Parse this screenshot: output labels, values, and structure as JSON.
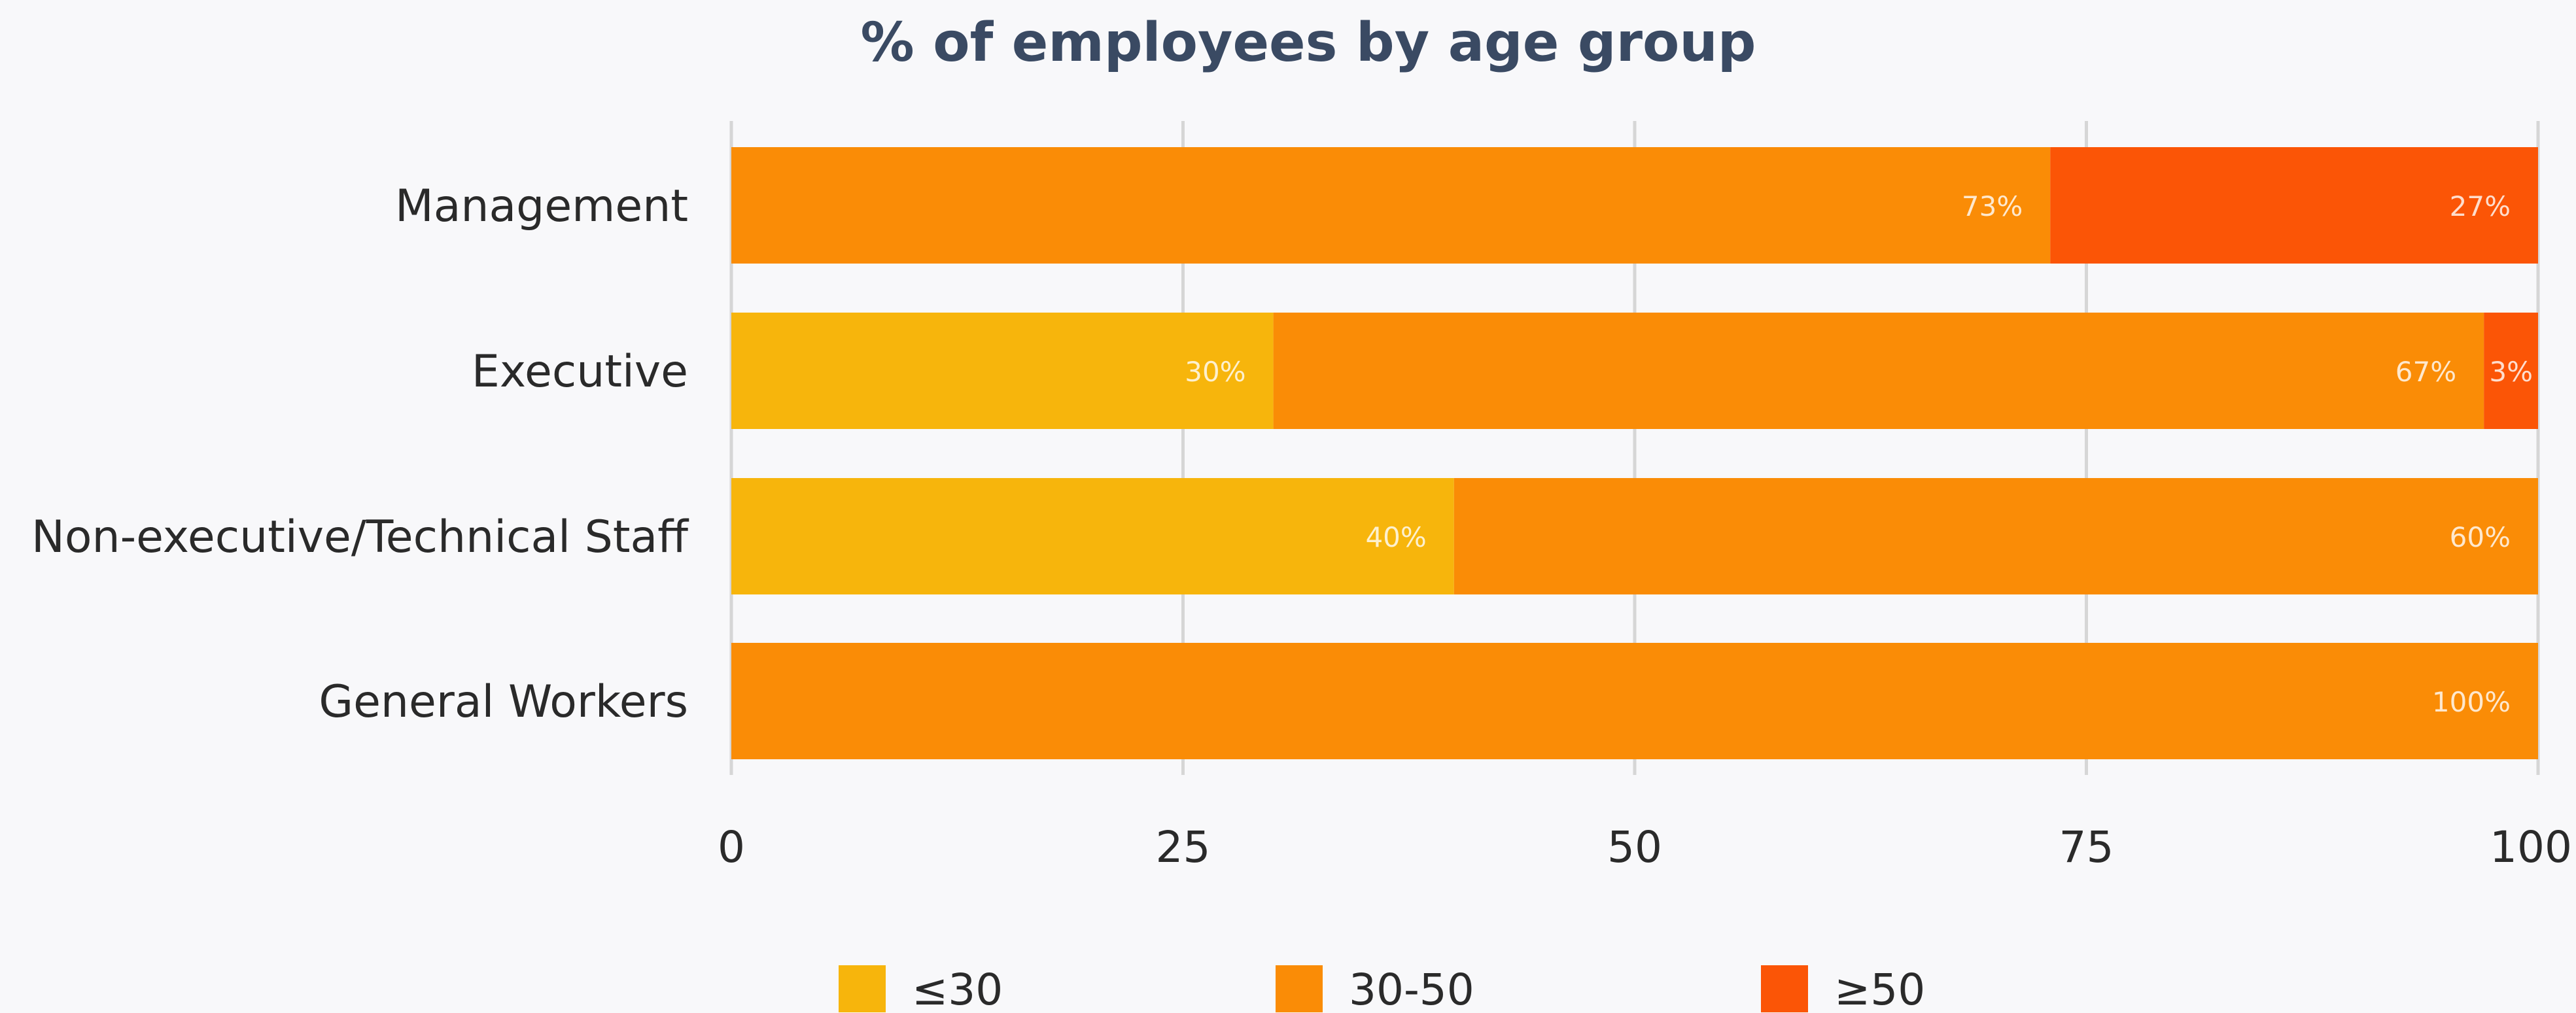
{
  "chart_data": {
    "type": "bar",
    "orientation": "horizontal",
    "stacked": true,
    "title": "% of employees by age group",
    "xlabel": "",
    "ylabel": "",
    "xlim": [
      0,
      100
    ],
    "x_ticks": [
      "0",
      "25",
      "50",
      "75",
      "100"
    ],
    "grid": "vertical",
    "legend_position": "bottom",
    "categories": [
      "Management",
      "Executive",
      "Non-executive/Technical Staff",
      "General Workers"
    ],
    "series": [
      {
        "name": "≤30",
        "color": "#f7b50c",
        "values": [
          0,
          30,
          40,
          0
        ],
        "labels": [
          "",
          "30%",
          "40%",
          ""
        ]
      },
      {
        "name": "30-50",
        "color": "#fa8c06",
        "values": [
          73,
          67,
          60,
          100
        ],
        "labels": [
          "73%",
          "67%",
          "60%",
          "100%"
        ]
      },
      {
        "name": "≥50",
        "color": "#fb5506",
        "values": [
          27,
          3,
          0,
          0
        ],
        "labels": [
          "27%",
          "3%",
          "",
          ""
        ]
      }
    ]
  }
}
